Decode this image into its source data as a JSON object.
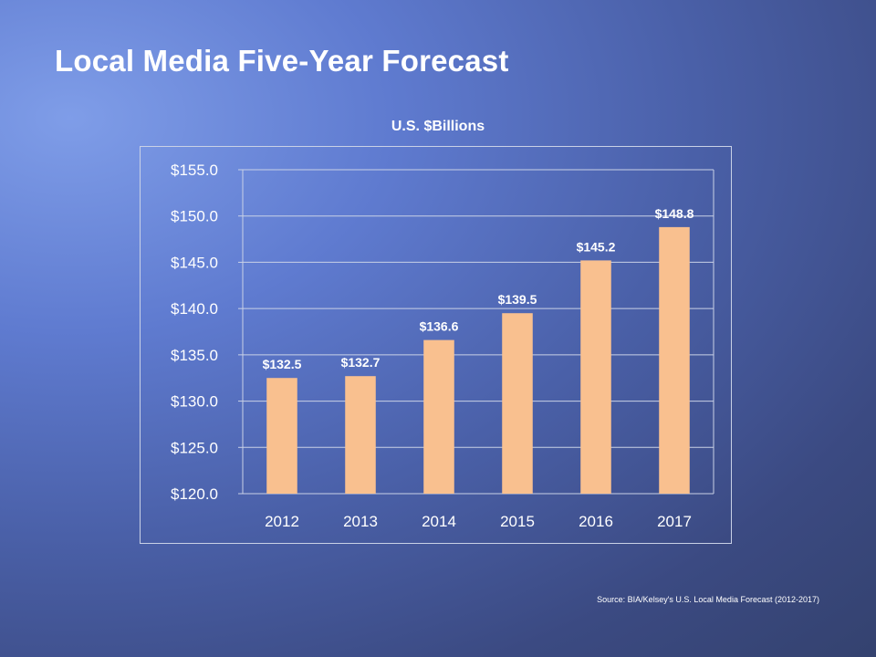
{
  "slide": {
    "title": "Local Media Five-Year Forecast",
    "source": "Source:  BIA/Kelsey's U.S. Local Media Forecast (2012-2017)"
  },
  "chart_data": {
    "type": "bar",
    "title": "U.S. $Billions",
    "categories": [
      "2012",
      "2013",
      "2014",
      "2015",
      "2016",
      "2017"
    ],
    "values": [
      132.5,
      132.7,
      136.6,
      139.5,
      145.2,
      148.8
    ],
    "data_labels": [
      "$132.5",
      "$132.7",
      "$136.6",
      "$139.5",
      "$145.2",
      "$148.8"
    ],
    "ylim": [
      120,
      155
    ],
    "yticks": [
      120,
      125,
      130,
      135,
      140,
      145,
      150,
      155
    ],
    "ytick_labels": [
      "$120.0",
      "$125.0",
      "$130.0",
      "$135.0",
      "$140.0",
      "$145.0",
      "$150.0",
      "$155.0"
    ],
    "grid": true,
    "bar_color": "#f9c08f",
    "gridline_color": "#c9d1e6"
  }
}
